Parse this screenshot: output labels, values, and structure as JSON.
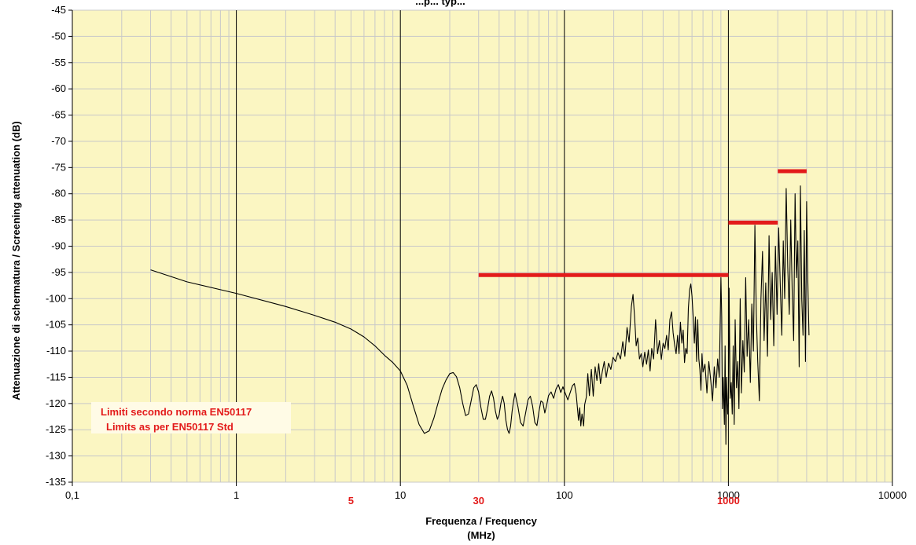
{
  "chart_data": {
    "type": "line",
    "title": "...p... typ...",
    "xlabel": "Frequenza / Frequency",
    "xlabel_unit": "(MHz)",
    "ylabel": "Attenuazione di schermatura / Screening attenuation (dB)",
    "x_scale": "log",
    "xlim": [
      0.1,
      10000
    ],
    "ylim": [
      -135,
      -45
    ],
    "grid": true,
    "background_color": "#fbf6c2",
    "x_ticks": [
      {
        "value": 0.1,
        "label": "0,1"
      },
      {
        "value": 1,
        "label": "1"
      },
      {
        "value": 10,
        "label": "10"
      },
      {
        "value": 100,
        "label": "100"
      },
      {
        "value": 1000,
        "label": "1000"
      },
      {
        "value": 10000,
        "label": "10000"
      }
    ],
    "y_ticks": [
      -45,
      -50,
      -55,
      -60,
      -65,
      -70,
      -75,
      -80,
      -85,
      -90,
      -95,
      -100,
      -105,
      -110,
      -115,
      -120,
      -125,
      -130,
      -135
    ],
    "highlight_x_labels": [
      {
        "value": 5,
        "label": "5"
      },
      {
        "value": 30,
        "label": "30"
      },
      {
        "value": 1000,
        "label": "1000"
      }
    ],
    "annotation": [
      "Limiti secondo norma EN50117",
      "Limits as per EN50117 Std"
    ],
    "limit_color": "#e31b1b",
    "limits": [
      {
        "x": [
          30,
          1000
        ],
        "y": -95.5
      },
      {
        "x": [
          1000,
          2000
        ],
        "y": -85.5
      },
      {
        "x": [
          2000,
          3000
        ],
        "y": -75.7
      }
    ],
    "series": [
      {
        "color": "#000000",
        "points": [
          [
            0.3,
            -94.5
          ],
          [
            0.5,
            -96.8
          ],
          [
            1,
            -99.0
          ],
          [
            2,
            -101.5
          ],
          [
            3,
            -103.2
          ],
          [
            4,
            -104.5
          ],
          [
            5,
            -105.8
          ],
          [
            6,
            -107.3
          ],
          [
            7,
            -109.0
          ],
          [
            8,
            -110.8
          ],
          [
            9,
            -112.2
          ],
          [
            10,
            -113.8
          ],
          [
            11,
            -116.5
          ],
          [
            12,
            -120.5
          ],
          [
            13,
            -124.0
          ],
          [
            14,
            -125.7
          ],
          [
            15,
            -125.2
          ],
          [
            16,
            -122.8
          ],
          [
            17,
            -119.8
          ],
          [
            18,
            -117.2
          ],
          [
            19,
            -115.5
          ],
          [
            20,
            -114.3
          ],
          [
            21,
            -114.1
          ],
          [
            22,
            -114.9
          ],
          [
            23,
            -117.0
          ],
          [
            24,
            -120.0
          ],
          [
            25,
            -122.3
          ],
          [
            26,
            -122.0
          ],
          [
            27,
            -119.5
          ],
          [
            28,
            -117.0
          ],
          [
            29,
            -116.4
          ],
          [
            30,
            -117.8
          ],
          [
            31,
            -120.8
          ],
          [
            32,
            -123.0
          ],
          [
            33,
            -123.0
          ],
          [
            34,
            -121.0
          ],
          [
            35,
            -118.6
          ],
          [
            36,
            -117.6
          ],
          [
            37,
            -119.0
          ],
          [
            38,
            -121.5
          ],
          [
            39,
            -123.0
          ],
          [
            40,
            -122.2
          ],
          [
            41,
            -120.0
          ],
          [
            42,
            -118.6
          ],
          [
            43,
            -120.0
          ],
          [
            44,
            -123.2
          ],
          [
            45,
            -125.0
          ],
          [
            46,
            -125.7
          ],
          [
            47,
            -124.3
          ],
          [
            48,
            -121.5
          ],
          [
            49,
            -119.5
          ],
          [
            50,
            -118.0
          ],
          [
            52,
            -120.5
          ],
          [
            54,
            -123.6
          ],
          [
            56,
            -124.3
          ],
          [
            58,
            -121.8
          ],
          [
            60,
            -119.3
          ],
          [
            62,
            -118.6
          ],
          [
            64,
            -120.5
          ],
          [
            66,
            -123.6
          ],
          [
            68,
            -124.2
          ],
          [
            70,
            -121.5
          ],
          [
            72,
            -119.5
          ],
          [
            74,
            -119.8
          ],
          [
            76,
            -121.8
          ],
          [
            78,
            -120.3
          ],
          [
            80,
            -118.5
          ],
          [
            83,
            -117.8
          ],
          [
            86,
            -119.0
          ],
          [
            89,
            -117.2
          ],
          [
            92,
            -116.4
          ],
          [
            95,
            -117.9
          ],
          [
            98,
            -116.8
          ],
          [
            100,
            -117.6
          ],
          [
            105,
            -119.3
          ],
          [
            108,
            -118.1
          ],
          [
            112,
            -116.6
          ],
          [
            115,
            -116.2
          ],
          [
            118,
            -118.2
          ],
          [
            122,
            -123.2
          ],
          [
            124,
            -120.8
          ],
          [
            126,
            -124.3
          ],
          [
            128,
            -122.0
          ],
          [
            131,
            -124.3
          ],
          [
            133,
            -120.2
          ],
          [
            136,
            -118.8
          ],
          [
            139,
            -114.3
          ],
          [
            142,
            -118.5
          ],
          [
            146,
            -113.5
          ],
          [
            150,
            -118.6
          ],
          [
            154,
            -113.0
          ],
          [
            158,
            -115.6
          ],
          [
            162,
            -112.4
          ],
          [
            166,
            -116.2
          ],
          [
            170,
            -114.0
          ],
          [
            175,
            -112.0
          ],
          [
            180,
            -115.0
          ],
          [
            186,
            -112.3
          ],
          [
            192,
            -113.5
          ],
          [
            198,
            -111.2
          ],
          [
            205,
            -112.0
          ],
          [
            212,
            -110.3
          ],
          [
            220,
            -111.5
          ],
          [
            227,
            -108.2
          ],
          [
            234,
            -111.0
          ],
          [
            241,
            -105.5
          ],
          [
            248,
            -108.3
          ],
          [
            256,
            -101.5
          ],
          [
            262,
            -99.2
          ],
          [
            268,
            -103.5
          ],
          [
            274,
            -109.0
          ],
          [
            280,
            -107.5
          ],
          [
            287,
            -111.5
          ],
          [
            294,
            -110.5
          ],
          [
            301,
            -113.0
          ],
          [
            309,
            -110.2
          ],
          [
            317,
            -112.5
          ],
          [
            325,
            -109.8
          ],
          [
            333,
            -113.8
          ],
          [
            341,
            -109.5
          ],
          [
            350,
            -111.5
          ],
          [
            360,
            -104.0
          ],
          [
            370,
            -110.5
          ],
          [
            380,
            -108.0
          ],
          [
            390,
            -111.6
          ],
          [
            400,
            -108.5
          ],
          [
            410,
            -109.5
          ],
          [
            420,
            -107.0
          ],
          [
            430,
            -109.8
          ],
          [
            440,
            -104.0
          ],
          [
            450,
            -102.5
          ],
          [
            460,
            -106.5
          ],
          [
            470,
            -108.8
          ],
          [
            480,
            -110.5
          ],
          [
            490,
            -107.0
          ],
          [
            500,
            -110.5
          ],
          [
            510,
            -104.5
          ],
          [
            520,
            -108.5
          ],
          [
            530,
            -106.0
          ],
          [
            540,
            -112.2
          ],
          [
            550,
            -109.5
          ],
          [
            560,
            -110.5
          ],
          [
            570,
            -101.8
          ],
          [
            580,
            -98.3
          ],
          [
            590,
            -97.2
          ],
          [
            600,
            -99.5
          ],
          [
            610,
            -103.5
          ],
          [
            620,
            -108.5
          ],
          [
            630,
            -103.5
          ],
          [
            640,
            -112.0
          ],
          [
            650,
            -104.0
          ],
          [
            660,
            -111.5
          ],
          [
            670,
            -113.5
          ],
          [
            680,
            -117.5
          ],
          [
            690,
            -110.5
          ],
          [
            700,
            -114.0
          ],
          [
            720,
            -112.5
          ],
          [
            740,
            -118.0
          ],
          [
            760,
            -112.0
          ],
          [
            780,
            -115.5
          ],
          [
            800,
            -119.5
          ],
          [
            820,
            -113.0
          ],
          [
            840,
            -117.0
          ],
          [
            860,
            -111.5
          ],
          [
            880,
            -115.0
          ],
          [
            900,
            -96.0
          ],
          [
            910,
            -103.5
          ],
          [
            920,
            -121.0
          ],
          [
            930,
            -115.0
          ],
          [
            945,
            -124.0
          ],
          [
            955,
            -109.0
          ],
          [
            965,
            -127.8
          ],
          [
            975,
            -115.0
          ],
          [
            990,
            -122.0
          ],
          [
            1000,
            -120.0
          ],
          [
            1010,
            -98.0
          ],
          [
            1025,
            -119.0
          ],
          [
            1040,
            -116.0
          ],
          [
            1055,
            -122.0
          ],
          [
            1070,
            -109.0
          ],
          [
            1085,
            -124.0
          ],
          [
            1100,
            -104.0
          ],
          [
            1120,
            -117.0
          ],
          [
            1140,
            -112.0
          ],
          [
            1160,
            -121.0
          ],
          [
            1180,
            -100.0
          ],
          [
            1200,
            -118.0
          ],
          [
            1225,
            -108.0
          ],
          [
            1250,
            -114.0
          ],
          [
            1275,
            -96.0
          ],
          [
            1300,
            -111.0
          ],
          [
            1330,
            -104.0
          ],
          [
            1360,
            -116.0
          ],
          [
            1390,
            -101.0
          ],
          [
            1420,
            -110.0
          ],
          [
            1450,
            -86.0
          ],
          [
            1480,
            -103.0
          ],
          [
            1510,
            -112.0
          ],
          [
            1545,
            -119.5
          ],
          [
            1580,
            -100.0
          ],
          [
            1615,
            -91.0
          ],
          [
            1650,
            -108.0
          ],
          [
            1690,
            -97.0
          ],
          [
            1730,
            -111.0
          ],
          [
            1770,
            -88.0
          ],
          [
            1810,
            -104.0
          ],
          [
            1850,
            -95.0
          ],
          [
            1890,
            -109.0
          ],
          [
            1935,
            -90.0
          ],
          [
            1980,
            -103.0
          ],
          [
            2025,
            -86.5
          ],
          [
            2070,
            -97.0
          ],
          [
            2115,
            -107.0
          ],
          [
            2160,
            -89.0
          ],
          [
            2205,
            -100.0
          ],
          [
            2250,
            -79.0
          ],
          [
            2300,
            -94.0
          ],
          [
            2350,
            -103.0
          ],
          [
            2400,
            -85.0
          ],
          [
            2450,
            -99.0
          ],
          [
            2500,
            -108.0
          ],
          [
            2550,
            -80.0
          ],
          [
            2600,
            -96.0
          ],
          [
            2650,
            -89.0
          ],
          [
            2700,
            -113.0
          ],
          [
            2750,
            -78.5
          ],
          [
            2800,
            -100.0
          ],
          [
            2850,
            -107.0
          ],
          [
            2900,
            -87.0
          ],
          [
            2950,
            -112.0
          ],
          [
            3000,
            -81.5
          ],
          [
            3050,
            -96.5
          ],
          [
            3100,
            -107.0
          ]
        ]
      }
    ]
  }
}
